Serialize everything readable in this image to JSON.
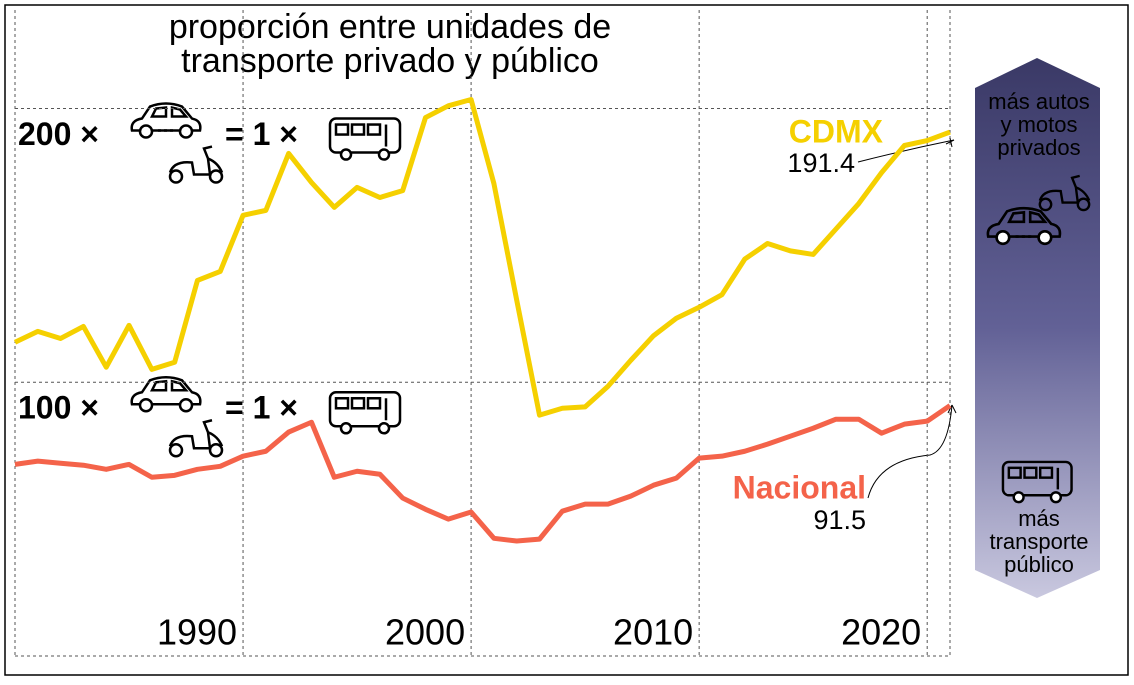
{
  "chart_data": {
    "type": "line",
    "title": "proporción entre unidades de",
    "subtitle": "transporte privado y público",
    "x": [
      1980,
      1981,
      1982,
      1983,
      1984,
      1985,
      1986,
      1987,
      1988,
      1989,
      1990,
      1991,
      1992,
      1993,
      1994,
      1995,
      1996,
      1997,
      1998,
      1999,
      2000,
      2001,
      2002,
      2003,
      2004,
      2005,
      2006,
      2007,
      2008,
      2009,
      2010,
      2011,
      2012,
      2013,
      2014,
      2015,
      2016,
      2017,
      2018,
      2019,
      2020,
      2021
    ],
    "series": [
      {
        "name": "CDMX",
        "color": "#f5d000",
        "values": [
          114.6,
          118.6,
          116,
          120.4,
          105.5,
          120.8,
          104.7,
          107.3,
          137.2,
          140.5,
          161,
          162.8,
          183.6,
          173,
          163.9,
          171.2,
          167.5,
          170,
          196.7,
          201,
          203.3,
          172.6,
          130,
          88,
          90.5,
          91,
          98.5,
          108,
          117,
          123.4,
          127.4,
          132,
          145,
          150.7,
          148,
          146.7,
          156,
          165.3,
          176.6,
          186.5,
          188.3,
          191.4
        ],
        "end_label": "191.4"
      },
      {
        "name": "Nacional",
        "color": "#f4634a",
        "values": [
          70,
          71.2,
          70.4,
          69.7,
          68.2,
          70,
          65.3,
          66,
          68.2,
          69.3,
          73,
          74.8,
          81.8,
          85.4,
          65.3,
          67.5,
          66.4,
          57.7,
          53.6,
          50,
          52.6,
          43,
          42,
          42.7,
          52.9,
          55.5,
          55.5,
          58.4,
          62.4,
          65,
          72.3,
          73,
          74.8,
          77.4,
          80.3,
          83.2,
          86.5,
          86.5,
          81.4,
          84.7,
          85.8,
          91.5
        ],
        "end_label": "91.5"
      }
    ],
    "xlim": [
      1980,
      2021
    ],
    "xticks": [
      1990,
      2000,
      2010,
      2020
    ],
    "ylim": [
      0,
      236
    ],
    "yticks": [
      {
        "value": 100,
        "label": "100 ×"
      },
      {
        "value": 200,
        "label": "200 ×"
      }
    ],
    "ytick_suffix": "= 1 ×",
    "grid": true,
    "scale_top": [
      "más autos",
      "y motos",
      "privados"
    ],
    "scale_bottom": [
      "más",
      "transporte",
      "público"
    ]
  }
}
